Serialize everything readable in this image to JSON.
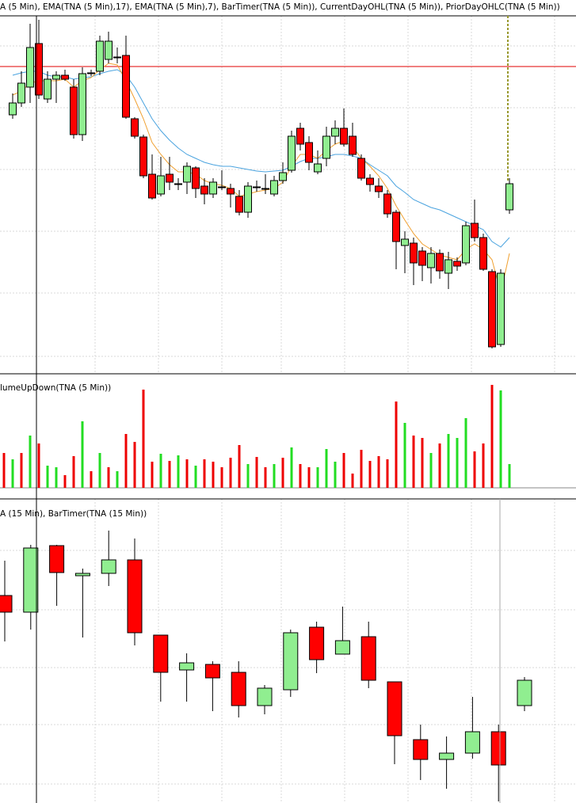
{
  "chart_data": [
    {
      "type": "candlestick",
      "title": "A (5 Min), EMA(TNA (5 Min),17), EMA(TNA (5 Min),7), BarTimer(TNA (5 Min)), CurrentDayOHL(TNA (5 Min)), PriorDayOHLC(TNA (5 Min))",
      "ylim": [
        28,
        480
      ],
      "up_color": "#90ee90",
      "down_color": "#ff0000",
      "open": [
        355,
        370,
        390,
        445,
        375,
        400,
        405,
        390,
        330,
        407,
        410,
        425,
        428,
        430,
        350,
        327,
        280,
        255,
        280,
        268,
        270,
        288,
        265,
        255,
        264,
        262,
        252,
        232,
        264,
        262,
        255,
        272,
        285,
        338,
        320,
        283,
        300,
        328,
        338,
        328,
        300,
        275,
        265,
        255,
        232,
        190,
        193,
        183,
        162,
        180,
        155,
        170,
        168,
        218,
        200,
        157,
        65,
        235
      ],
      "high": [
        382,
        410,
        470,
        475,
        410,
        410,
        412,
        400,
        415,
        412,
        455,
        460,
        440,
        455,
        352,
        330,
        305,
        302,
        302,
        275,
        295,
        290,
        275,
        275,
        285,
        268,
        260,
        270,
        272,
        280,
        278,
        295,
        335,
        345,
        328,
        310,
        340,
        348,
        363,
        345,
        305,
        280,
        275,
        260,
        235,
        208,
        200,
        188,
        188,
        185,
        182,
        175,
        220,
        248,
        205,
        160,
        160,
        275
      ],
      "low": [
        350,
        365,
        370,
        375,
        370,
        370,
        398,
        325,
        322,
        404,
        405,
        420,
        420,
        350,
        325,
        275,
        248,
        252,
        260,
        260,
        255,
        250,
        242,
        250,
        260,
        238,
        228,
        225,
        258,
        255,
        252,
        268,
        282,
        310,
        285,
        280,
        290,
        318,
        315,
        302,
        272,
        258,
        250,
        225,
        160,
        155,
        140,
        145,
        142,
        148,
        135,
        158,
        165,
        195,
        158,
        60,
        62,
        230
      ],
      "close": [
        370,
        395,
        440,
        380,
        400,
        405,
        400,
        330,
        407,
        408,
        448,
        448,
        428,
        352,
        328,
        278,
        250,
        278,
        270,
        268,
        290,
        262,
        255,
        270,
        264,
        255,
        232,
        265,
        264,
        262,
        272,
        282,
        328,
        318,
        295,
        293,
        328,
        338,
        318,
        305,
        275,
        267,
        258,
        230,
        195,
        198,
        168,
        165,
        180,
        158,
        172,
        164,
        215,
        200,
        160,
        62,
        155,
        268
      ],
      "lines": [
        {
          "color": "#4aa3df",
          "values": [
            405,
            408,
            410,
            410,
            405,
            403,
            403,
            400,
            402,
            403,
            407,
            410,
            412,
            405,
            390,
            370,
            350,
            335,
            323,
            313,
            305,
            300,
            295,
            292,
            290,
            290,
            288,
            286,
            284,
            283,
            284,
            285,
            290,
            296,
            300,
            300,
            302,
            305,
            305,
            303,
            300,
            292,
            285,
            278,
            265,
            257,
            248,
            243,
            238,
            235,
            230,
            225,
            220,
            215,
            210,
            195,
            188,
            200
          ]
        },
        {
          "color": "#f0a030",
          "values": [
            380,
            385,
            395,
            398,
            398,
            398,
            400,
            390,
            398,
            402,
            412,
            420,
            418,
            398,
            375,
            350,
            320,
            305,
            292,
            283,
            283,
            280,
            272,
            268,
            266,
            262,
            252,
            255,
            258,
            260,
            262,
            270,
            290,
            305,
            305,
            300,
            310,
            318,
            322,
            315,
            300,
            290,
            278,
            262,
            240,
            222,
            205,
            192,
            185,
            178,
            175,
            172,
            185,
            192,
            185,
            172,
            130,
            180
          ]
        }
      ],
      "levels": [
        {
          "value": 416,
          "color": "#e00000"
        }
      ]
    },
    {
      "type": "bar",
      "title": "lumeUpDown(TNA (5 Min))",
      "ylim": [
        0,
        144
      ],
      "values": [
        44,
        36,
        44,
        66,
        56,
        28,
        26,
        16,
        40,
        84,
        21,
        44,
        26,
        21,
        68,
        58,
        124,
        33,
        43,
        34,
        41,
        36,
        28,
        36,
        33,
        26,
        38,
        54,
        30,
        39,
        26,
        30,
        38,
        51,
        30,
        26,
        26,
        49,
        33,
        44,
        18,
        48,
        34,
        40,
        36,
        109,
        82,
        66,
        63,
        44,
        56,
        68,
        63,
        88,
        46,
        56,
        130,
        123,
        30
      ],
      "colors": [
        "#ee0000",
        "#22dd22",
        "#ee0000",
        "#22dd22",
        "#ee0000",
        "#22dd22",
        "#22dd22",
        "#ee0000",
        "#ee0000",
        "#22dd22",
        "#ee0000",
        "#22dd22",
        "#ee0000",
        "#22dd22",
        "#ee0000",
        "#ee0000",
        "#ee0000",
        "#ee0000",
        "#22dd22",
        "#ee0000",
        "#22dd22",
        "#ee0000",
        "#22dd22",
        "#ee0000",
        "#ee0000",
        "#ee0000",
        "#ee0000",
        "#ee0000",
        "#22dd22",
        "#ee0000",
        "#ee0000",
        "#22dd22",
        "#ee0000",
        "#22dd22",
        "#ee0000",
        "#ee0000",
        "#22dd22",
        "#22dd22",
        "#22dd22",
        "#ee0000",
        "#ee0000",
        "#ee0000",
        "#ee0000",
        "#ee0000",
        "#ee0000",
        "#ee0000",
        "#22dd22",
        "#ee0000",
        "#ee0000",
        "#22dd22",
        "#ee0000",
        "#22dd22",
        "#22dd22",
        "#22dd22",
        "#ee0000",
        "#ee0000",
        "#ee0000",
        "#22dd22",
        "#22dd22"
      ]
    },
    {
      "type": "candlestick",
      "title": "A (15 Min), BarTimer(TNA (15 Min))",
      "ylim": [
        86,
        470
      ],
      "up_color": "#90ee90",
      "down_color": "#ff0000",
      "open": [
        348,
        327,
        411,
        373,
        376,
        393,
        298,
        254,
        261,
        251,
        209,
        229,
        308,
        274,
        296,
        239,
        166,
        141,
        149,
        176,
        209
      ],
      "high": [
        392,
        412,
        412,
        382,
        430,
        420,
        298,
        275,
        265,
        265,
        235,
        305,
        315,
        334,
        315,
        239,
        185,
        170,
        220,
        185,
        245
      ],
      "low": [
        290,
        305,
        335,
        295,
        360,
        285,
        214,
        214,
        202,
        194,
        198,
        220,
        250,
        274,
        231,
        135,
        115,
        104,
        142,
        88,
        202
      ],
      "close": [
        327,
        408,
        377,
        376,
        393,
        301,
        251,
        263,
        244,
        209,
        231,
        301,
        267,
        291,
        241,
        171,
        141,
        149,
        176,
        134,
        241
      ]
    }
  ]
}
